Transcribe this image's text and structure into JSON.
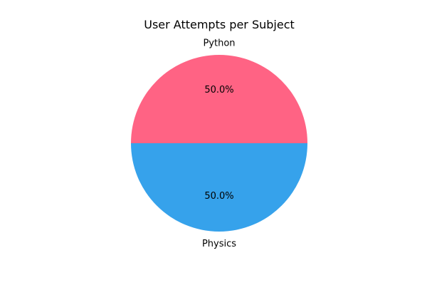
{
  "chart_data": {
    "type": "pie",
    "title": "User Attempts per Subject",
    "categories": [
      "Python",
      "Physics"
    ],
    "values": [
      50.0,
      50.0
    ],
    "percent_labels": [
      "50.0%",
      "50.0%"
    ],
    "colors": [
      "#ff6384",
      "#36a2eb"
    ],
    "start_angle_deg": 0,
    "direction": "counterclockwise",
    "legend": "none"
  }
}
